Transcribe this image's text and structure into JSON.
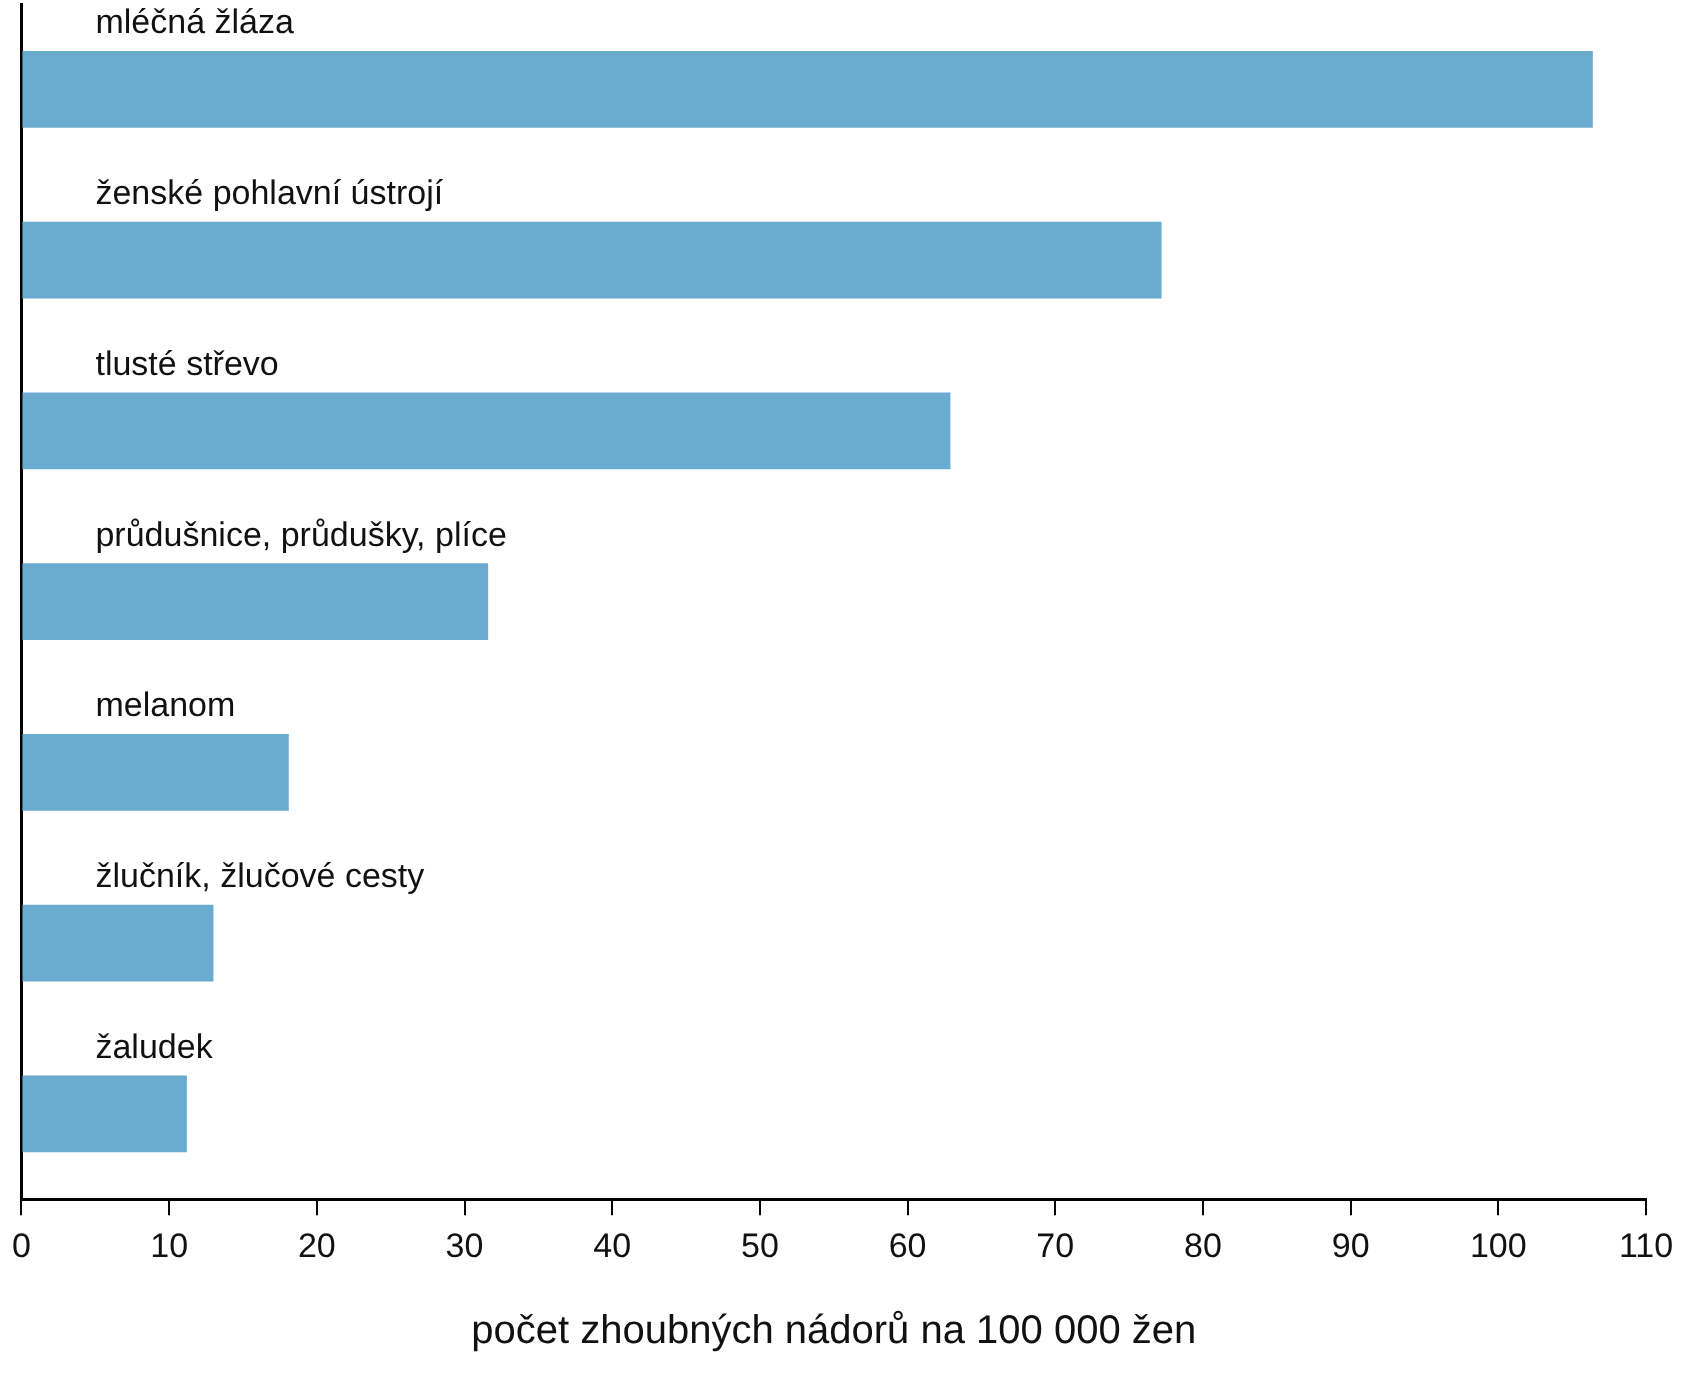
{
  "chart_data": {
    "type": "bar",
    "orientation": "horizontal",
    "xlabel": "počet zhoubných nádorů na 100 000 žen",
    "categories": [
      "mléčná žláza",
      "ženské pohlavní ústrojí",
      "tlusté střevo",
      "průdušnice, průdušky, plíce",
      "melanom",
      "žlučník, žlučové cesty",
      "žaludek"
    ],
    "values": [
      106.4,
      77.2,
      62.9,
      31.6,
      18.1,
      13.0,
      11.2
    ],
    "color": "#6aaccf",
    "xlim": [
      0,
      110
    ],
    "xticks": [
      0,
      10,
      20,
      30,
      40,
      50,
      60,
      70,
      80,
      90,
      100,
      110
    ],
    "grid": false,
    "legend": false,
    "tick_labels": "x"
  }
}
